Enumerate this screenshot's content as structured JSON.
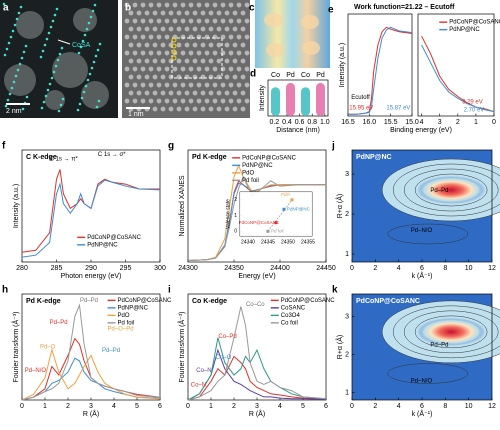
{
  "images": [
    {
      "letter": "a",
      "scale_bar": "2 nm",
      "label": "CoSA"
    },
    {
      "letter": "b",
      "scale_bar": "1 nm"
    },
    {
      "letter": "c"
    }
  ],
  "chart_data": [
    {
      "letter": "d",
      "type": "bar",
      "categories": [
        "Co",
        "Pd",
        "Co",
        "Pd"
      ],
      "values": [
        0.8,
        0.92,
        0.8,
        0.92
      ],
      "colors": [
        "#57c6c9",
        "#e97fb0",
        "#57c6c9",
        "#e97fb0"
      ],
      "ylim": [
        0,
        1
      ],
      "ylabel": "Intensity",
      "xlabel": "Distance (nm)",
      "xlim": [
        0.1,
        1.05
      ],
      "xticks": [
        0.2,
        0.4,
        0.6,
        0.8,
        {
          "value": 1,
          "label": "1.0"
        }
      ]
    },
    {
      "letter": "e",
      "type": "line",
      "title": "Work function=21.22 – Ecutoff",
      "ylabel": "Intensity (a.u.)",
      "x": [
        16.5,
        16.3,
        16.1,
        16.0,
        15.95,
        15.9,
        15.8,
        15.7,
        15.6,
        15.5,
        15.3,
        15.0
      ],
      "xlim": [
        16.5,
        15.0
      ],
      "ylim": [
        0,
        1.15
      ],
      "xticks": [
        16.5,
        {
          "value": 16,
          "label": "16.0"
        },
        15.5,
        {
          "value": 15,
          "label": "15.0"
        }
      ],
      "series": [
        {
          "color": "#e0302a",
          "values": [
            0.02,
            0.02,
            0.03,
            0.05,
            0.2,
            0.5,
            0.8,
            0.95,
            1.0,
            0.98,
            0.95,
            0.93
          ]
        },
        {
          "color": "#3b8fd6",
          "values": [
            0.02,
            0.02,
            0.03,
            0.04,
            0.1,
            0.3,
            0.65,
            0.88,
            0.97,
            1.0,
            0.96,
            0.94
          ]
        }
      ],
      "annotations": [
        {
          "text": "Ecutoff",
          "color": "#000"
        },
        {
          "text": "15.95 eV",
          "color": "#e0302a"
        },
        {
          "text": "15.87 eV",
          "color": "#3b8fd6"
        }
      ]
    },
    {
      "type": "line",
      "xlabel": "Binding energy (eV)",
      "x": [
        4,
        3.5,
        3,
        2.5,
        2,
        1.5,
        1,
        0.5,
        0
      ],
      "xlim": [
        4.2,
        0
      ],
      "ylim": [
        0,
        1.15
      ],
      "xticks": [
        4,
        3,
        2,
        1,
        0
      ],
      "series": [
        {
          "name": "PdCoNP@CoSANC",
          "color": "#e0302a",
          "values": [
            0.9,
            0.7,
            0.45,
            0.3,
            0.22,
            0.15,
            0.1,
            0.08,
            0.05
          ]
        },
        {
          "name": "PdNP@NC",
          "color": "#3b8fd6",
          "values": [
            0.8,
            0.6,
            0.4,
            0.27,
            0.2,
            0.14,
            0.1,
            0.07,
            0.05
          ]
        }
      ],
      "annotations": [
        {
          "text": "3.29 eV",
          "color": "#e0302a"
        },
        {
          "text": "2.70 eV",
          "color": "#3b8fd6"
        }
      ]
    },
    {
      "letter": "f",
      "type": "line",
      "title": "C K-edge",
      "ylabel": "Intensity (a.u.)",
      "xlabel": "Photon energy (eV)",
      "x": [
        280,
        282,
        284,
        285,
        285.5,
        286,
        287,
        288,
        288.5,
        289,
        290,
        291,
        292,
        293,
        295,
        297,
        300
      ],
      "xlim": [
        280,
        300
      ],
      "ylim": [
        0,
        1.15
      ],
      "xticks": [
        280,
        285,
        290,
        295,
        300
      ],
      "series": [
        {
          "name": "PdCoNP@CoSANC",
          "color": "#e0302a",
          "values": [
            0.1,
            0.12,
            0.3,
            0.85,
            0.95,
            0.7,
            0.55,
            0.6,
            0.65,
            0.6,
            0.55,
            0.8,
            0.85,
            0.82,
            0.8,
            0.75,
            0.75
          ]
        },
        {
          "name": "PdNP@NC",
          "color": "#3b8fd6",
          "values": [
            0.05,
            0.07,
            0.2,
            0.7,
            0.8,
            0.6,
            0.5,
            0.6,
            0.7,
            0.6,
            0.55,
            0.78,
            0.84,
            0.82,
            0.78,
            0.75,
            0.74
          ]
        }
      ],
      "annotations": [
        {
          "text": "C 1s → π*",
          "color": "#000"
        },
        {
          "text": "C 1s → σ*",
          "color": "#000"
        }
      ]
    },
    {
      "letter": "g",
      "type": "line",
      "title": "Pd K-edge",
      "ylabel": "Normalized XANES",
      "xlabel": "Energy (eV)",
      "x": [
        24300,
        24320,
        24330,
        24340,
        24345,
        24350,
        24355,
        24360,
        24370,
        24380,
        24390,
        24400,
        24420,
        24450
      ],
      "xlim": [
        24300,
        24450
      ],
      "ylim": [
        0,
        1.45
      ],
      "xticks": [
        24300,
        24350,
        24400,
        24450
      ],
      "series": [
        {
          "name": "PdCoNP@CoSANC",
          "color": "#e0302a",
          "values": [
            0.02,
            0.03,
            0.05,
            0.2,
            0.5,
            0.9,
            1.05,
            1.0,
            0.9,
            0.95,
            0.98,
            1.0,
            1.0,
            1.0
          ]
        },
        {
          "name": "PdNP@NC",
          "color": "#3b8fd6",
          "values": [
            0.02,
            0.03,
            0.05,
            0.22,
            0.52,
            0.88,
            1.02,
            1.0,
            0.92,
            0.95,
            0.99,
            1.0,
            1.0,
            1.0
          ]
        },
        {
          "name": "PdO",
          "color": "#f0a040",
          "values": [
            0.02,
            0.03,
            0.06,
            0.3,
            0.7,
            1.1,
            1.25,
            1.1,
            0.9,
            0.95,
            1.0,
            1.0,
            1.0,
            1.0
          ]
        },
        {
          "name": "Pd foil",
          "color": "#999999",
          "values": [
            0.02,
            0.03,
            0.05,
            0.2,
            0.45,
            0.75,
            0.95,
            1.1,
            0.85,
            0.95,
            1.05,
            0.98,
            1.0,
            1.0
          ]
        }
      ]
    },
    {
      "type": "scatter",
      "ylabel": "Valence state",
      "x": [
        24345,
        24347,
        24349,
        24351
      ],
      "values": [
        0,
        0.55,
        1.4,
        2
      ],
      "labels": [
        "Pd foil",
        "PdCoNP@CoSANC",
        "PdNP@NC",
        "PdO"
      ],
      "colors": [
        "#999999",
        "#e0302a",
        "#3b8fd6",
        "#f0a040"
      ],
      "xlim": [
        24338,
        24356
      ],
      "ylim": [
        -0.3,
        2.5
      ],
      "xticks": [
        24340,
        24345,
        24350,
        24355
      ],
      "yticks": [
        0,
        1,
        2
      ]
    },
    {
      "letter": "h",
      "type": "line",
      "title": "Pd K-edge",
      "ylabel": "Fourier transform (Å⁻³)",
      "xlabel": "R (Å)",
      "x": [
        0,
        0.5,
        1,
        1.3,
        1.6,
        2,
        2.3,
        2.5,
        2.7,
        3,
        3.3,
        3.6,
        4,
        4.5,
        5,
        6
      ],
      "xlim": [
        0,
        6
      ],
      "ylim": [
        0,
        1.9
      ],
      "xticks": [
        0,
        1,
        2,
        3,
        4,
        5,
        6
      ],
      "series": [
        {
          "name": "PdCoNP@CoSANC",
          "color": "#e0302a",
          "values": [
            0,
            0.05,
            0.2,
            0.6,
            0.45,
            0.8,
            1.1,
            1.0,
            0.7,
            0.4,
            0.3,
            0.25,
            0.2,
            0.15,
            0.1,
            0.05
          ]
        },
        {
          "name": "PdNP@NC",
          "color": "#3b8fd6",
          "values": [
            0,
            0.05,
            0.15,
            0.3,
            0.35,
            0.5,
            0.75,
            0.7,
            0.5,
            0.35,
            0.3,
            0.2,
            0.15,
            0.1,
            0.05,
            0.03
          ]
        },
        {
          "name": "PdO",
          "color": "#f0a040",
          "values": [
            0,
            0.1,
            0.4,
            0.9,
            0.5,
            0.2,
            0.3,
            0.45,
            0.6,
            0.8,
            0.5,
            0.3,
            0.2,
            0.1,
            0.05,
            0.02
          ]
        },
        {
          "name": "Pd foil",
          "color": "#999999",
          "values": [
            0,
            0.05,
            0.15,
            0.2,
            0.3,
            0.7,
            1.5,
            1.7,
            1.0,
            0.4,
            0.3,
            0.25,
            0.2,
            0.15,
            0.08,
            0.05
          ]
        }
      ],
      "annotations": [
        {
          "text": "Pd–Pd",
          "color": "#777777"
        },
        {
          "text": "Pd–Pd",
          "color": "#e0302a"
        },
        {
          "text": "Pd–O–Pd",
          "color": "#f0a040"
        },
        {
          "text": "Pd–O",
          "color": "#f0a040"
        },
        {
          "text": "Pd–Pd",
          "color": "#3b8fd6"
        },
        {
          "text": "Pd–N/O",
          "color": "#e0302a"
        }
      ]
    },
    {
      "letter": "i",
      "type": "line",
      "title": "Co K-edge",
      "ylabel": "Fourier transform (Å⁻³)",
      "xlabel": "R (Å)",
      "x": [
        0,
        0.5,
        1,
        1.3,
        1.6,
        2,
        2.3,
        2.5,
        2.7,
        3,
        3.3,
        3.6,
        4,
        4.5,
        5,
        6
      ],
      "xlim": [
        0,
        6
      ],
      "ylim": [
        0,
        1.7
      ],
      "xticks": [
        0,
        1,
        2,
        3,
        4,
        5,
        6
      ],
      "series": [
        {
          "name": "PdCoNP@CoSANC",
          "color": "#e0302a",
          "values": [
            0,
            0.05,
            0.3,
            0.5,
            0.4,
            0.7,
            0.6,
            0.5,
            0.3,
            0.2,
            0.15,
            0.1,
            0.08,
            0.05,
            0.03,
            0.02
          ]
        },
        {
          "name": "CoSANC",
          "color": "#5a3fa0",
          "values": [
            0,
            0.1,
            0.4,
            0.8,
            0.5,
            0.3,
            0.25,
            0.2,
            0.15,
            0.1,
            0.05,
            0.05,
            0.03,
            0.02,
            0.02,
            0.01
          ]
        },
        {
          "name": "Co3O4",
          "color": "#2e9a8a",
          "values": [
            0,
            0.1,
            0.4,
            1.0,
            0.6,
            0.4,
            0.5,
            0.7,
            0.6,
            0.8,
            0.5,
            0.3,
            0.2,
            0.1,
            0.05,
            0.02
          ]
        },
        {
          "name": "Co foil",
          "color": "#999999",
          "values": [
            0,
            0.05,
            0.15,
            0.3,
            0.4,
            1.0,
            1.5,
            1.2,
            0.6,
            0.3,
            0.25,
            0.3,
            0.2,
            0.15,
            0.05,
            0.02
          ]
        }
      ],
      "annotations": [
        {
          "text": "Co–Co",
          "color": "#777777"
        },
        {
          "text": "Co–Pd",
          "color": "#e0302a"
        },
        {
          "text": "Co–O",
          "color": "#3b8fd6"
        },
        {
          "text": "Co–N",
          "color": "#5a3fa0"
        },
        {
          "text": "Co–N",
          "color": "#e0302a"
        }
      ]
    },
    {
      "letter": "j",
      "type": "wavelet",
      "title": "PdNP@NC",
      "ylabel": "R+α (Å)",
      "xlabel": "k (Å⁻¹)",
      "xlim": [
        0,
        12
      ],
      "ylim": [
        0.8,
        3.6
      ],
      "xticks": [
        0,
        2,
        4,
        6,
        8,
        10,
        12
      ],
      "yticks": [
        1,
        2,
        3
      ],
      "annotations": [
        {
          "text": "Pd–Pd",
          "color": "#000"
        },
        {
          "text": "Pd–N/O",
          "color": "#000"
        }
      ]
    },
    {
      "letter": "k",
      "type": "wavelet",
      "title": "PdCoNP@CoSANC",
      "ylabel": "R+α (Å)",
      "xlabel": "k (Å⁻¹)",
      "xlim": [
        0,
        12
      ],
      "ylim": [
        0.8,
        3.6
      ],
      "xticks": [
        0,
        2,
        4,
        6,
        8,
        10,
        12
      ],
      "yticks": [
        1,
        2,
        3
      ],
      "annotations": [
        {
          "text": "Pd–Pd",
          "color": "#000"
        },
        {
          "text": "Pd–N/O",
          "color": "#000"
        }
      ]
    }
  ]
}
